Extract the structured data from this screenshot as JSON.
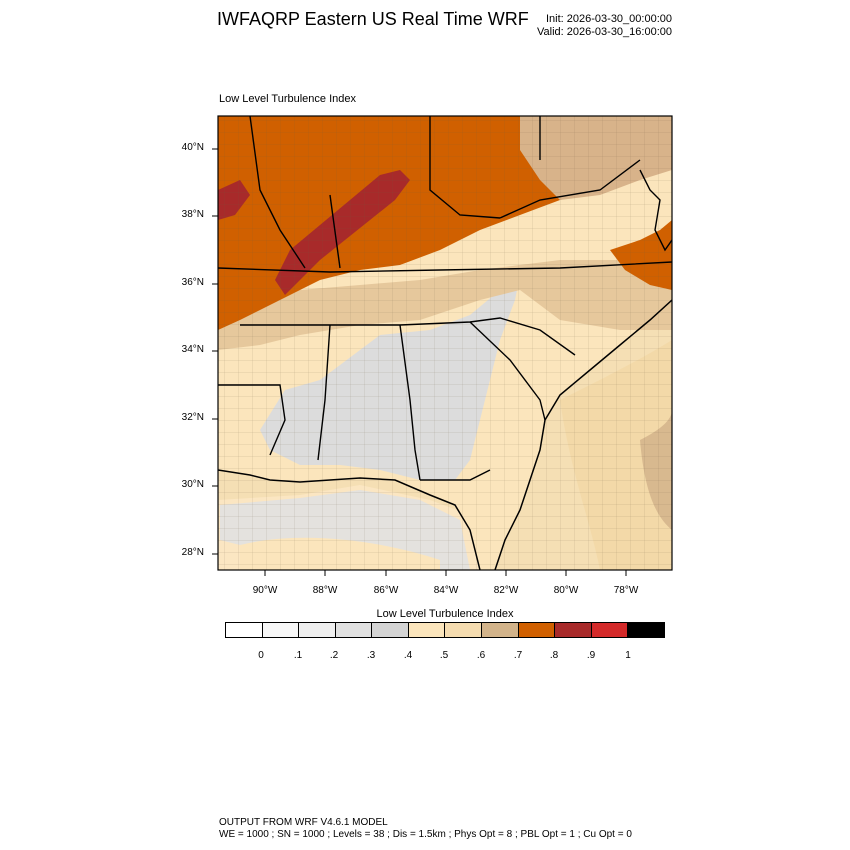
{
  "header": {
    "title": "IWFAQRP Eastern US Real Time WRF",
    "init": "Init: 2026-03-30_00:00:00",
    "valid": "Valid: 2026-03-30_16:00:00"
  },
  "panel": {
    "title": "Low Level Turbulence Index"
  },
  "map": {
    "lat_labels": [
      "40°N",
      "38°N",
      "36°N",
      "34°N",
      "32°N",
      "30°N",
      "28°N"
    ],
    "lon_labels": [
      "90°W",
      "88°W",
      "86°W",
      "84°W",
      "82°W",
      "80°W",
      "78°W"
    ],
    "legend_colors": {
      "water": "#f5dfb4",
      "low": "#dcdcdc",
      "mid": "#fbe5bc",
      "high": "#d06000",
      "extreme": "#a82a2a"
    }
  },
  "colorbar": {
    "title": "Low Level Turbulence Index",
    "labels": [
      "0",
      ".1",
      ".2",
      ".3",
      ".4",
      ".5",
      ".6",
      ".7",
      ".8",
      ".9",
      "1"
    ],
    "colors": [
      "#ffffff",
      "#f7f7f7",
      "#efefef",
      "#e1e1e1",
      "#d4d4d4",
      "#fbe5bc",
      "#f5dcb0",
      "#d2b38a",
      "#d06000",
      "#a82a2a",
      "#d42a2a",
      "#000000"
    ]
  },
  "footer": {
    "line1": "OUTPUT FROM WRF V4.6.1 MODEL",
    "line2": "WE = 1000 ; SN = 1000 ; Levels = 38 ; Dis = 1.5km ; Phys Opt = 8 ; PBL Opt = 1 ; Cu Opt = 0"
  }
}
